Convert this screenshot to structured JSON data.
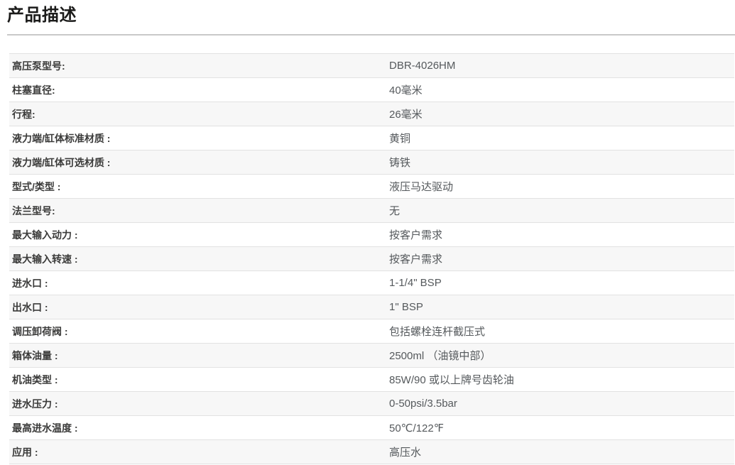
{
  "page": {
    "title": "产品描述"
  },
  "table": {
    "rows": [
      {
        "label": "高压泵型号:",
        "value": "DBR-4026HM"
      },
      {
        "label": "柱塞直径:",
        "value": "40毫米"
      },
      {
        "label": "行程:",
        "value": "26毫米"
      },
      {
        "label": "液力端/缸体标准材质 :",
        "value": "黄铜"
      },
      {
        "label": "液力端/缸体可选材质 :",
        "value": "铸铁"
      },
      {
        "label": "型式/类型 :",
        "value": "液压马达驱动"
      },
      {
        "label": "法兰型号:",
        "value": "无"
      },
      {
        "label": "最大输入动力 :",
        "value": "按客户需求"
      },
      {
        "label": "最大输入转速 :",
        "value": "按客户需求"
      },
      {
        "label": "进水口 :",
        "value": "1-1/4\" BSP"
      },
      {
        "label": "出水口 :",
        "value": "1\" BSP"
      },
      {
        "label": "调压卸荷阀 :",
        "value": "包括螺栓连杆截压式"
      },
      {
        "label": "箱体油量 :",
        "value": "2500ml （油镜中部）"
      },
      {
        "label": "机油类型 :",
        "value": "85W/90 或以上牌号齿轮油"
      },
      {
        "label": "进水压力 :",
        "value": "0-50psi/3.5bar"
      },
      {
        "label": "最高进水温度 :",
        "value": "50℃/122℉"
      },
      {
        "label": "应用 :",
        "value": "高压水"
      }
    ]
  },
  "colors": {
    "row_stripe": "#f7f7f7",
    "row_border": "#e2e2e2",
    "title_divider": "#c9c9c9",
    "label_text": "#3b3b3a",
    "value_text": "#55595c",
    "title_text": "#1b1b1a"
  }
}
